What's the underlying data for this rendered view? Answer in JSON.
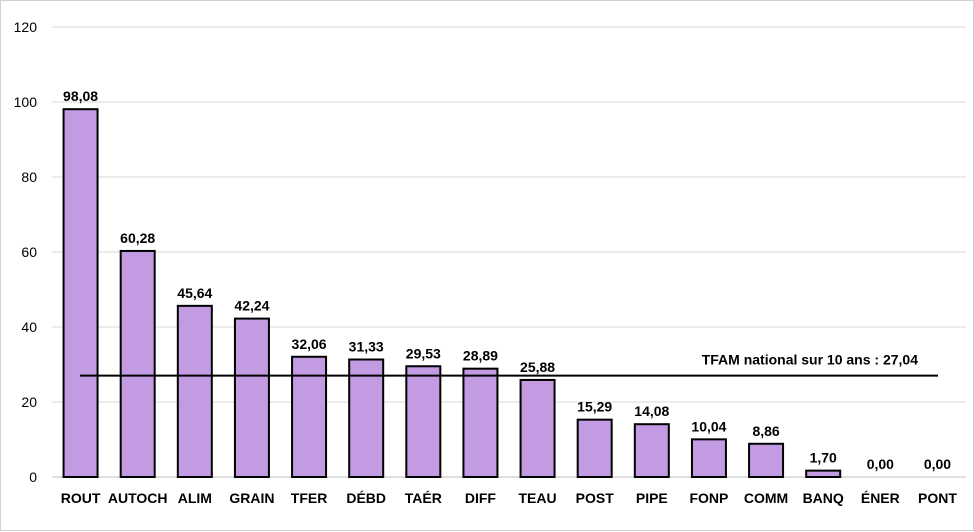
{
  "chart_data": {
    "type": "bar",
    "categories": [
      "ROUT",
      "AUTOCH",
      "ALIM",
      "GRAIN",
      "TFER",
      "DÉBD",
      "TAÉR",
      "DIFF",
      "TEAU",
      "POST",
      "PIPE",
      "FONP",
      "COMM",
      "BANQ",
      "ÉNER",
      "PONT"
    ],
    "values": [
      98.08,
      60.28,
      45.64,
      42.24,
      32.06,
      31.33,
      29.53,
      28.89,
      25.88,
      15.29,
      14.08,
      10.04,
      8.86,
      1.7,
      0.0,
      0.0
    ],
    "value_labels": [
      "98,08",
      "60,28",
      "45,64",
      "42,24",
      "32,06",
      "31,33",
      "29,53",
      "28,89",
      "25,88",
      "15,29",
      "14,08",
      "10,04",
      "8,86",
      "1,70",
      "0,00",
      "0,00"
    ],
    "y_ticks": [
      0,
      20,
      40,
      60,
      80,
      100,
      120
    ],
    "ylim": [
      0,
      120
    ],
    "grid": true,
    "legend": "none",
    "title": "",
    "xlabel": "",
    "ylabel": "",
    "reference_line": {
      "value": 27.04,
      "label": "TFAM national sur 10 ans : 27,04"
    },
    "colors": {
      "bar_fill": "#c39be3",
      "bar_stroke": "#000000",
      "grid": "#d9d9d9",
      "reference_line": "#000000"
    }
  }
}
